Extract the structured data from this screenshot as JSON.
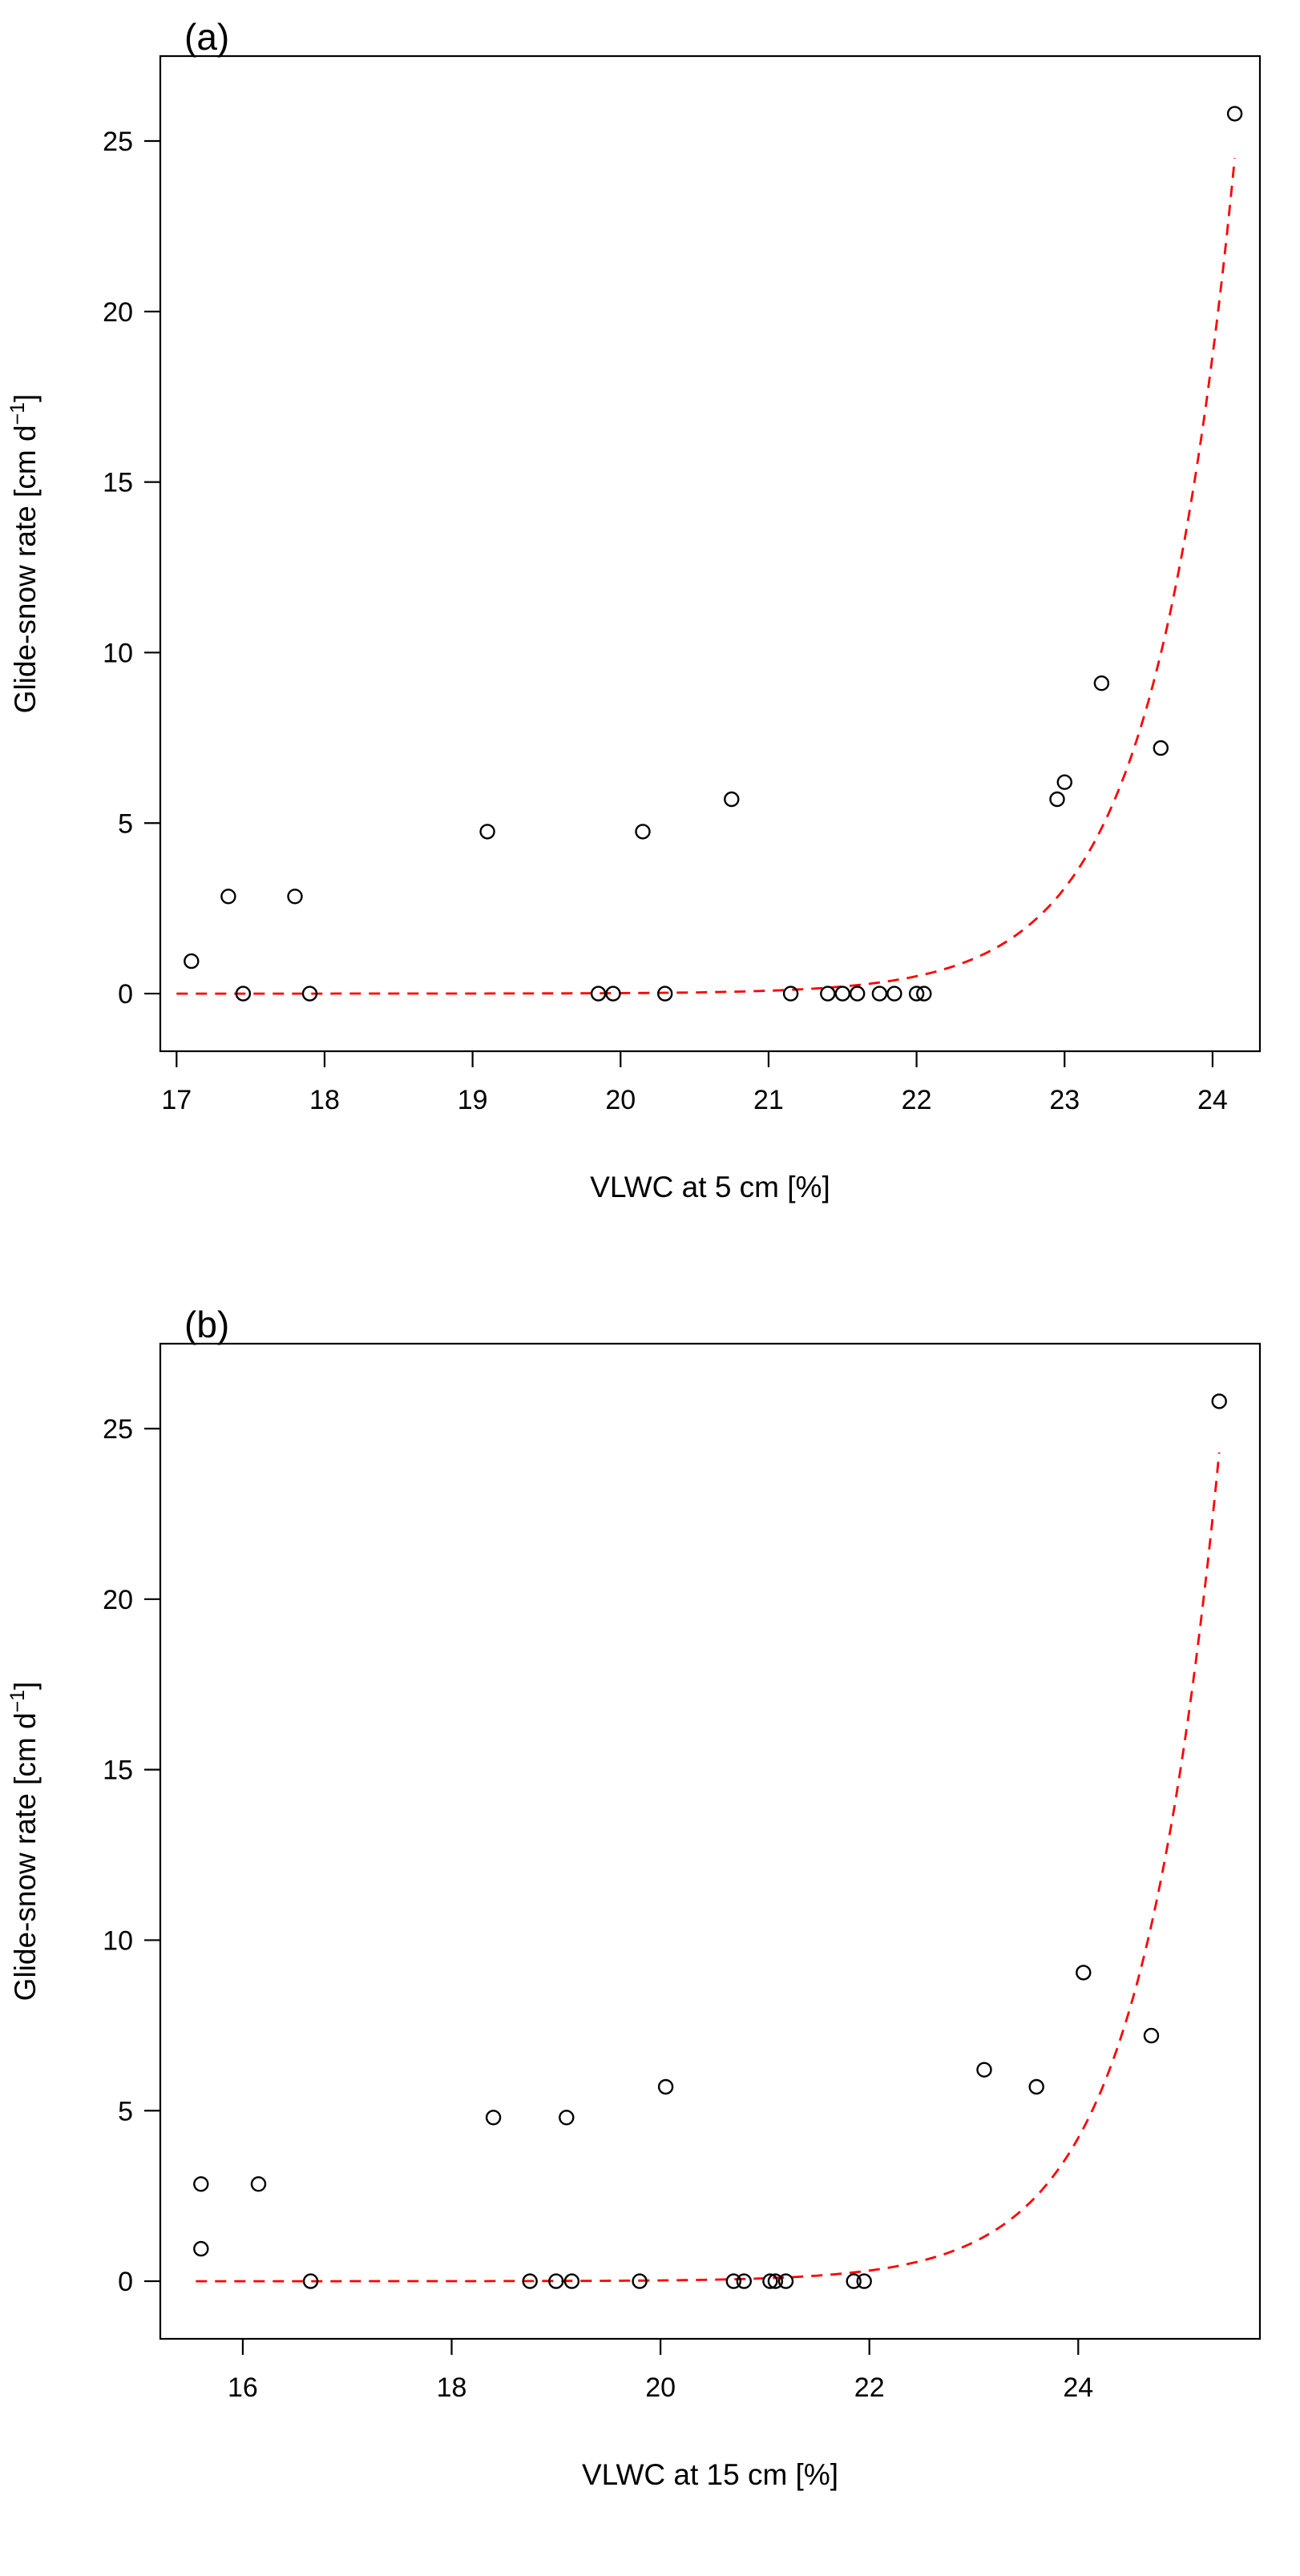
{
  "page": {
    "background": "#ffffff",
    "foreground": "#000000"
  },
  "chart_data": [
    {
      "type": "scatter",
      "panel_label": "(a)",
      "xlabel": "VLWC at 5 cm [%]",
      "ylabel": "Glide-snow rate [cm d⁻¹]",
      "xlim": [
        16.89,
        24.32
      ],
      "ylim": [
        -1.69,
        27.49
      ],
      "xticks": [
        17,
        18,
        19,
        20,
        21,
        22,
        23,
        24
      ],
      "yticks": [
        0,
        5,
        10,
        15,
        20,
        25
      ],
      "grid": false,
      "legend": "none",
      "points": [
        [
          17.1,
          0.95
        ],
        [
          17.35,
          2.85
        ],
        [
          17.45,
          0
        ],
        [
          17.8,
          2.85
        ],
        [
          17.9,
          0
        ],
        [
          19.1,
          4.75
        ],
        [
          19.85,
          0
        ],
        [
          19.95,
          0
        ],
        [
          20.15,
          4.75
        ],
        [
          20.3,
          0
        ],
        [
          20.75,
          5.7
        ],
        [
          21.15,
          0
        ],
        [
          21.4,
          0
        ],
        [
          21.5,
          0
        ],
        [
          21.6,
          0
        ],
        [
          21.75,
          0
        ],
        [
          21.85,
          0
        ],
        [
          22.0,
          0
        ],
        [
          22.05,
          0
        ],
        [
          22.95,
          5.7
        ],
        [
          23.0,
          6.2
        ],
        [
          23.25,
          9.1
        ],
        [
          23.65,
          7.2
        ],
        [
          24.15,
          25.8
        ]
      ],
      "point_style": {
        "marker": "open-circle",
        "color": "#000000"
      },
      "fit": {
        "type": "exponential",
        "style": "dashed",
        "color": "#ff0000",
        "x_ref": 24.15,
        "y_ref": 24.5,
        "rate": 1.8,
        "x_start": 17.0,
        "x_end": 24.15
      }
    },
    {
      "type": "scatter",
      "panel_label": "(b)",
      "xlabel": "VLWC at 15 cm [%]",
      "ylabel": "Glide-snow rate [cm d⁻¹]",
      "xlim": [
        15.21,
        25.74
      ],
      "ylim": [
        -1.69,
        27.49
      ],
      "xticks": [
        16,
        18,
        20,
        22,
        24
      ],
      "yticks": [
        0,
        5,
        10,
        15,
        20,
        25
      ],
      "grid": false,
      "legend": "none",
      "points": [
        [
          15.6,
          0.95
        ],
        [
          15.6,
          2.85
        ],
        [
          16.15,
          2.85
        ],
        [
          16.65,
          0
        ],
        [
          18.4,
          4.8
        ],
        [
          18.75,
          0
        ],
        [
          19.0,
          0
        ],
        [
          19.1,
          4.8
        ],
        [
          19.15,
          0
        ],
        [
          19.8,
          0
        ],
        [
          20.05,
          5.7
        ],
        [
          20.7,
          0
        ],
        [
          20.8,
          0
        ],
        [
          21.05,
          0
        ],
        [
          21.1,
          0
        ],
        [
          21.2,
          0
        ],
        [
          21.85,
          0
        ],
        [
          21.95,
          0
        ],
        [
          23.1,
          6.2
        ],
        [
          23.6,
          5.7
        ],
        [
          24.05,
          9.05
        ],
        [
          24.7,
          7.2
        ],
        [
          25.35,
          25.8
        ]
      ],
      "point_style": {
        "marker": "open-circle",
        "color": "#000000"
      },
      "fit": {
        "type": "exponential",
        "style": "dashed",
        "color": "#ff0000",
        "x_ref": 25.35,
        "y_ref": 24.3,
        "rate": 1.3,
        "x_start": 15.55,
        "x_end": 25.35
      }
    }
  ]
}
